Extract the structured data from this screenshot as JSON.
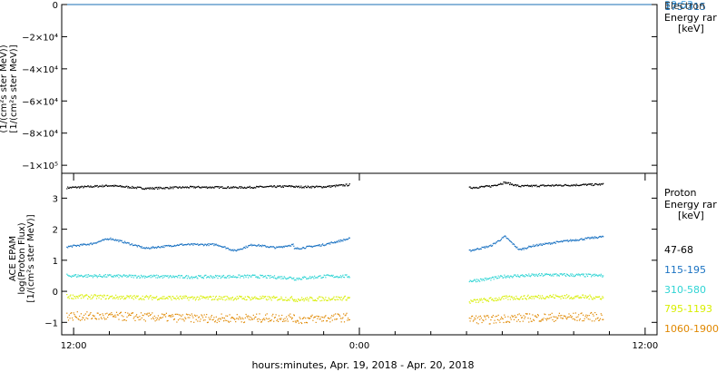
{
  "x_axis": {
    "title": "hours:minutes, Apr. 19, 2018 - Apr. 20, 2018",
    "tick_labels": [
      "12:00",
      "0:00",
      "12:00"
    ]
  },
  "top_panel": {
    "ylabel_lines": [
      "(1/(cm²s ster MeV))",
      "[1/(cm²s ster MeV)]"
    ],
    "legend_lines": [
      "Electron",
      "Energy rar",
      "[keV]"
    ],
    "legend_series": [
      "38-53",
      "175-315"
    ],
    "tick_labels": [
      "0",
      "−2×10⁴",
      "−4×10⁴",
      "−6×10⁴",
      "−8×10⁴",
      "−1×10⁵"
    ]
  },
  "bottom_panel": {
    "ylabel_lines": [
      "ACE EPAM",
      "log(Proton Flux)",
      "[1/(cm²s ster MeV)]"
    ],
    "legend_lines": [
      "Proton",
      "Energy rar",
      "[keV]"
    ],
    "tick_labels": [
      "3",
      "2",
      "1",
      "0",
      "−1"
    ]
  },
  "chart_data": [
    {
      "type": "line",
      "title": "",
      "xlabel": "hours:minutes, Apr. 19, 2018 - Apr. 20, 2018",
      "ylabel": "(1/(cm²s ster MeV)) [1/(cm²s ster MeV)]",
      "x_domain_hours": [
        -1,
        49
      ],
      "x_ticks": [
        {
          "hours": 0,
          "label": "12:00"
        },
        {
          "hours": 24,
          "label": "0:00"
        },
        {
          "hours": 48,
          "label": "12:00"
        }
      ],
      "ylim": [
        -105000,
        0
      ],
      "yticks": [
        0,
        -20000,
        -40000,
        -60000,
        -80000,
        -100000
      ],
      "series": [
        {
          "name": "38-53",
          "color": "#4aa3e0",
          "segments": [
            [
              [
                -0.6,
                0
              ],
              [
                49,
                0
              ]
            ]
          ]
        },
        {
          "name": "175-315",
          "color": "#1a6fb4",
          "segments": [
            [
              [
                -0.6,
                0
              ],
              [
                49,
                0
              ]
            ]
          ]
        }
      ]
    },
    {
      "type": "scatter",
      "title": "",
      "xlabel": "hours:minutes, Apr. 19, 2018 - Apr. 20, 2018",
      "ylabel": "log(Proton Flux) [1/(cm²s ster MeV)]",
      "x_domain_hours": [
        -1,
        49
      ],
      "x_ticks": [
        {
          "hours": 0,
          "label": "12:00"
        },
        {
          "hours": 24,
          "label": "0:00"
        },
        {
          "hours": 48,
          "label": "12:00"
        }
      ],
      "ylim": [
        -1.4,
        3.8
      ],
      "yticks": [
        3,
        2,
        1,
        0,
        -1
      ],
      "series": [
        {
          "name": "47-68",
          "color": "#000000",
          "segments": [
            [
              [
                -0.6,
                3.35
              ],
              [
                3,
                3.42
              ],
              [
                6,
                3.33
              ],
              [
                10,
                3.37
              ],
              [
                14,
                3.36
              ],
              [
                18.4,
                3.4
              ],
              [
                18.5,
                3.38
              ],
              [
                21,
                3.38
              ],
              [
                23.2,
                3.45
              ]
            ],
            [
              [
                33.2,
                3.35
              ],
              [
                35,
                3.4
              ],
              [
                36.2,
                3.52
              ],
              [
                37.4,
                3.4
              ],
              [
                41,
                3.43
              ],
              [
                44.5,
                3.46
              ]
            ]
          ]
        },
        {
          "name": "115-195",
          "color": "#1a72c2",
          "segments": [
            [
              [
                -0.6,
                1.45
              ],
              [
                1.5,
                1.55
              ],
              [
                3,
                1.72
              ],
              [
                4,
                1.62
              ],
              [
                6,
                1.4
              ],
              [
                9,
                1.52
              ],
              [
                12,
                1.52
              ],
              [
                13.5,
                1.32
              ],
              [
                15,
                1.52
              ],
              [
                17,
                1.42
              ],
              [
                18.4,
                1.52
              ],
              [
                18.5,
                1.38
              ],
              [
                21,
                1.52
              ],
              [
                23.2,
                1.72
              ]
            ],
            [
              [
                33.2,
                1.32
              ],
              [
                35,
                1.48
              ],
              [
                36.2,
                1.78
              ],
              [
                37.4,
                1.35
              ],
              [
                38.5,
                1.48
              ],
              [
                41,
                1.62
              ],
              [
                44.5,
                1.78
              ]
            ]
          ]
        },
        {
          "name": "310-580",
          "color": "#2fd4d4",
          "segments": [
            [
              [
                -0.6,
                0.52
              ],
              [
                5,
                0.5
              ],
              [
                10,
                0.48
              ],
              [
                15,
                0.5
              ],
              [
                18.4,
                0.45
              ],
              [
                18.5,
                0.42
              ],
              [
                21,
                0.5
              ],
              [
                23.2,
                0.5
              ]
            ],
            [
              [
                33.2,
                0.35
              ],
              [
                35,
                0.42
              ],
              [
                36.2,
                0.5
              ],
              [
                40,
                0.55
              ],
              [
                44.5,
                0.52
              ]
            ]
          ]
        },
        {
          "name": "795-1193",
          "color": "#d8ee00",
          "segments": [
            [
              [
                -0.6,
                -0.15
              ],
              [
                5,
                -0.18
              ],
              [
                10,
                -0.2
              ],
              [
                15,
                -0.2
              ],
              [
                18.4,
                -0.22
              ],
              [
                18.5,
                -0.25
              ],
              [
                21,
                -0.22
              ],
              [
                23.2,
                -0.2
              ]
            ],
            [
              [
                33.2,
                -0.32
              ],
              [
                35,
                -0.25
              ],
              [
                36.2,
                -0.2
              ],
              [
                40,
                -0.15
              ],
              [
                44.5,
                -0.18
              ]
            ]
          ]
        },
        {
          "name": "1060-1900",
          "color": "#e08800",
          "segments": [
            [
              [
                -0.6,
                -0.78
              ],
              [
                5,
                -0.8
              ],
              [
                10,
                -0.85
              ],
              [
                15,
                -0.85
              ],
              [
                18.4,
                -0.82
              ],
              [
                18.5,
                -0.9
              ],
              [
                21,
                -0.85
              ],
              [
                23.2,
                -0.82
              ]
            ],
            [
              [
                33.2,
                -0.88
              ],
              [
                35,
                -0.9
              ],
              [
                36.2,
                -0.85
              ],
              [
                40,
                -0.82
              ],
              [
                44.5,
                -0.8
              ]
            ]
          ]
        }
      ]
    }
  ]
}
